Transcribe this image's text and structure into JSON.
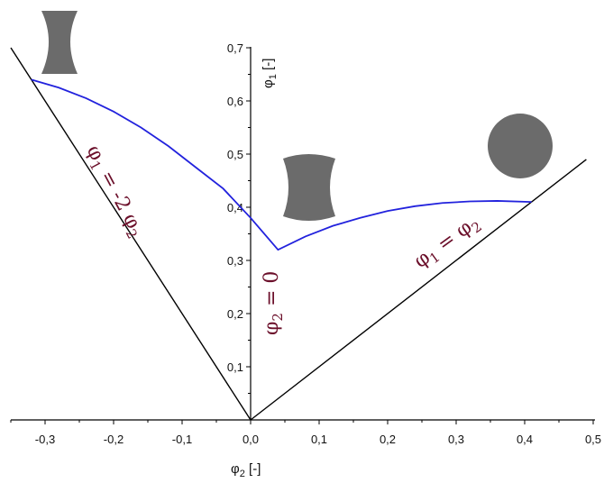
{
  "chart_data": {
    "type": "line",
    "xlabel": "φ2 [-]",
    "ylabel": "φ1 [-]",
    "xlim": [
      -0.35,
      0.5
    ],
    "ylim": [
      0,
      0.7
    ],
    "x_ticks": [
      "-0,3",
      "-0,2",
      "-0,1",
      "0,0",
      "0,1",
      "0,2",
      "0,3",
      "0,4",
      "0,5"
    ],
    "y_ticks": [
      "0,1",
      "0,2",
      "0,3",
      "0,4",
      "0,5",
      "0,6",
      "0,7"
    ],
    "boundary_lines": [
      {
        "label": "φ1 = -2 φ2",
        "points": [
          [
            -0.35,
            0.7
          ],
          [
            0.0,
            0.0
          ]
        ]
      },
      {
        "label": "φ1 = φ2",
        "points": [
          [
            0.0,
            0.0
          ],
          [
            0.49,
            0.49
          ]
        ]
      }
    ],
    "divider": {
      "label": "φ2 = 0"
    },
    "series": [
      {
        "color": "#2222dd",
        "points": [
          [
            -0.32,
            0.64
          ],
          [
            -0.28,
            0.625
          ],
          [
            -0.24,
            0.605
          ],
          [
            -0.2,
            0.58
          ],
          [
            -0.16,
            0.55
          ],
          [
            -0.12,
            0.515
          ],
          [
            -0.08,
            0.475
          ],
          [
            -0.04,
            0.435
          ],
          [
            0.0,
            0.38
          ],
          [
            0.04,
            0.32
          ],
          [
            0.08,
            0.345
          ],
          [
            0.12,
            0.365
          ],
          [
            0.16,
            0.38
          ],
          [
            0.2,
            0.393
          ],
          [
            0.24,
            0.402
          ],
          [
            0.28,
            0.408
          ],
          [
            0.32,
            0.411
          ],
          [
            0.36,
            0.412
          ],
          [
            0.41,
            0.41
          ]
        ]
      }
    ],
    "shape_icons": [
      "hourglass-shape",
      "barrel-shape",
      "circle-shape"
    ],
    "colors": {
      "axis": "#000000",
      "curve": "#2222dd",
      "annotation": "#6b0f2a",
      "shape": "#6b6b6b"
    }
  }
}
